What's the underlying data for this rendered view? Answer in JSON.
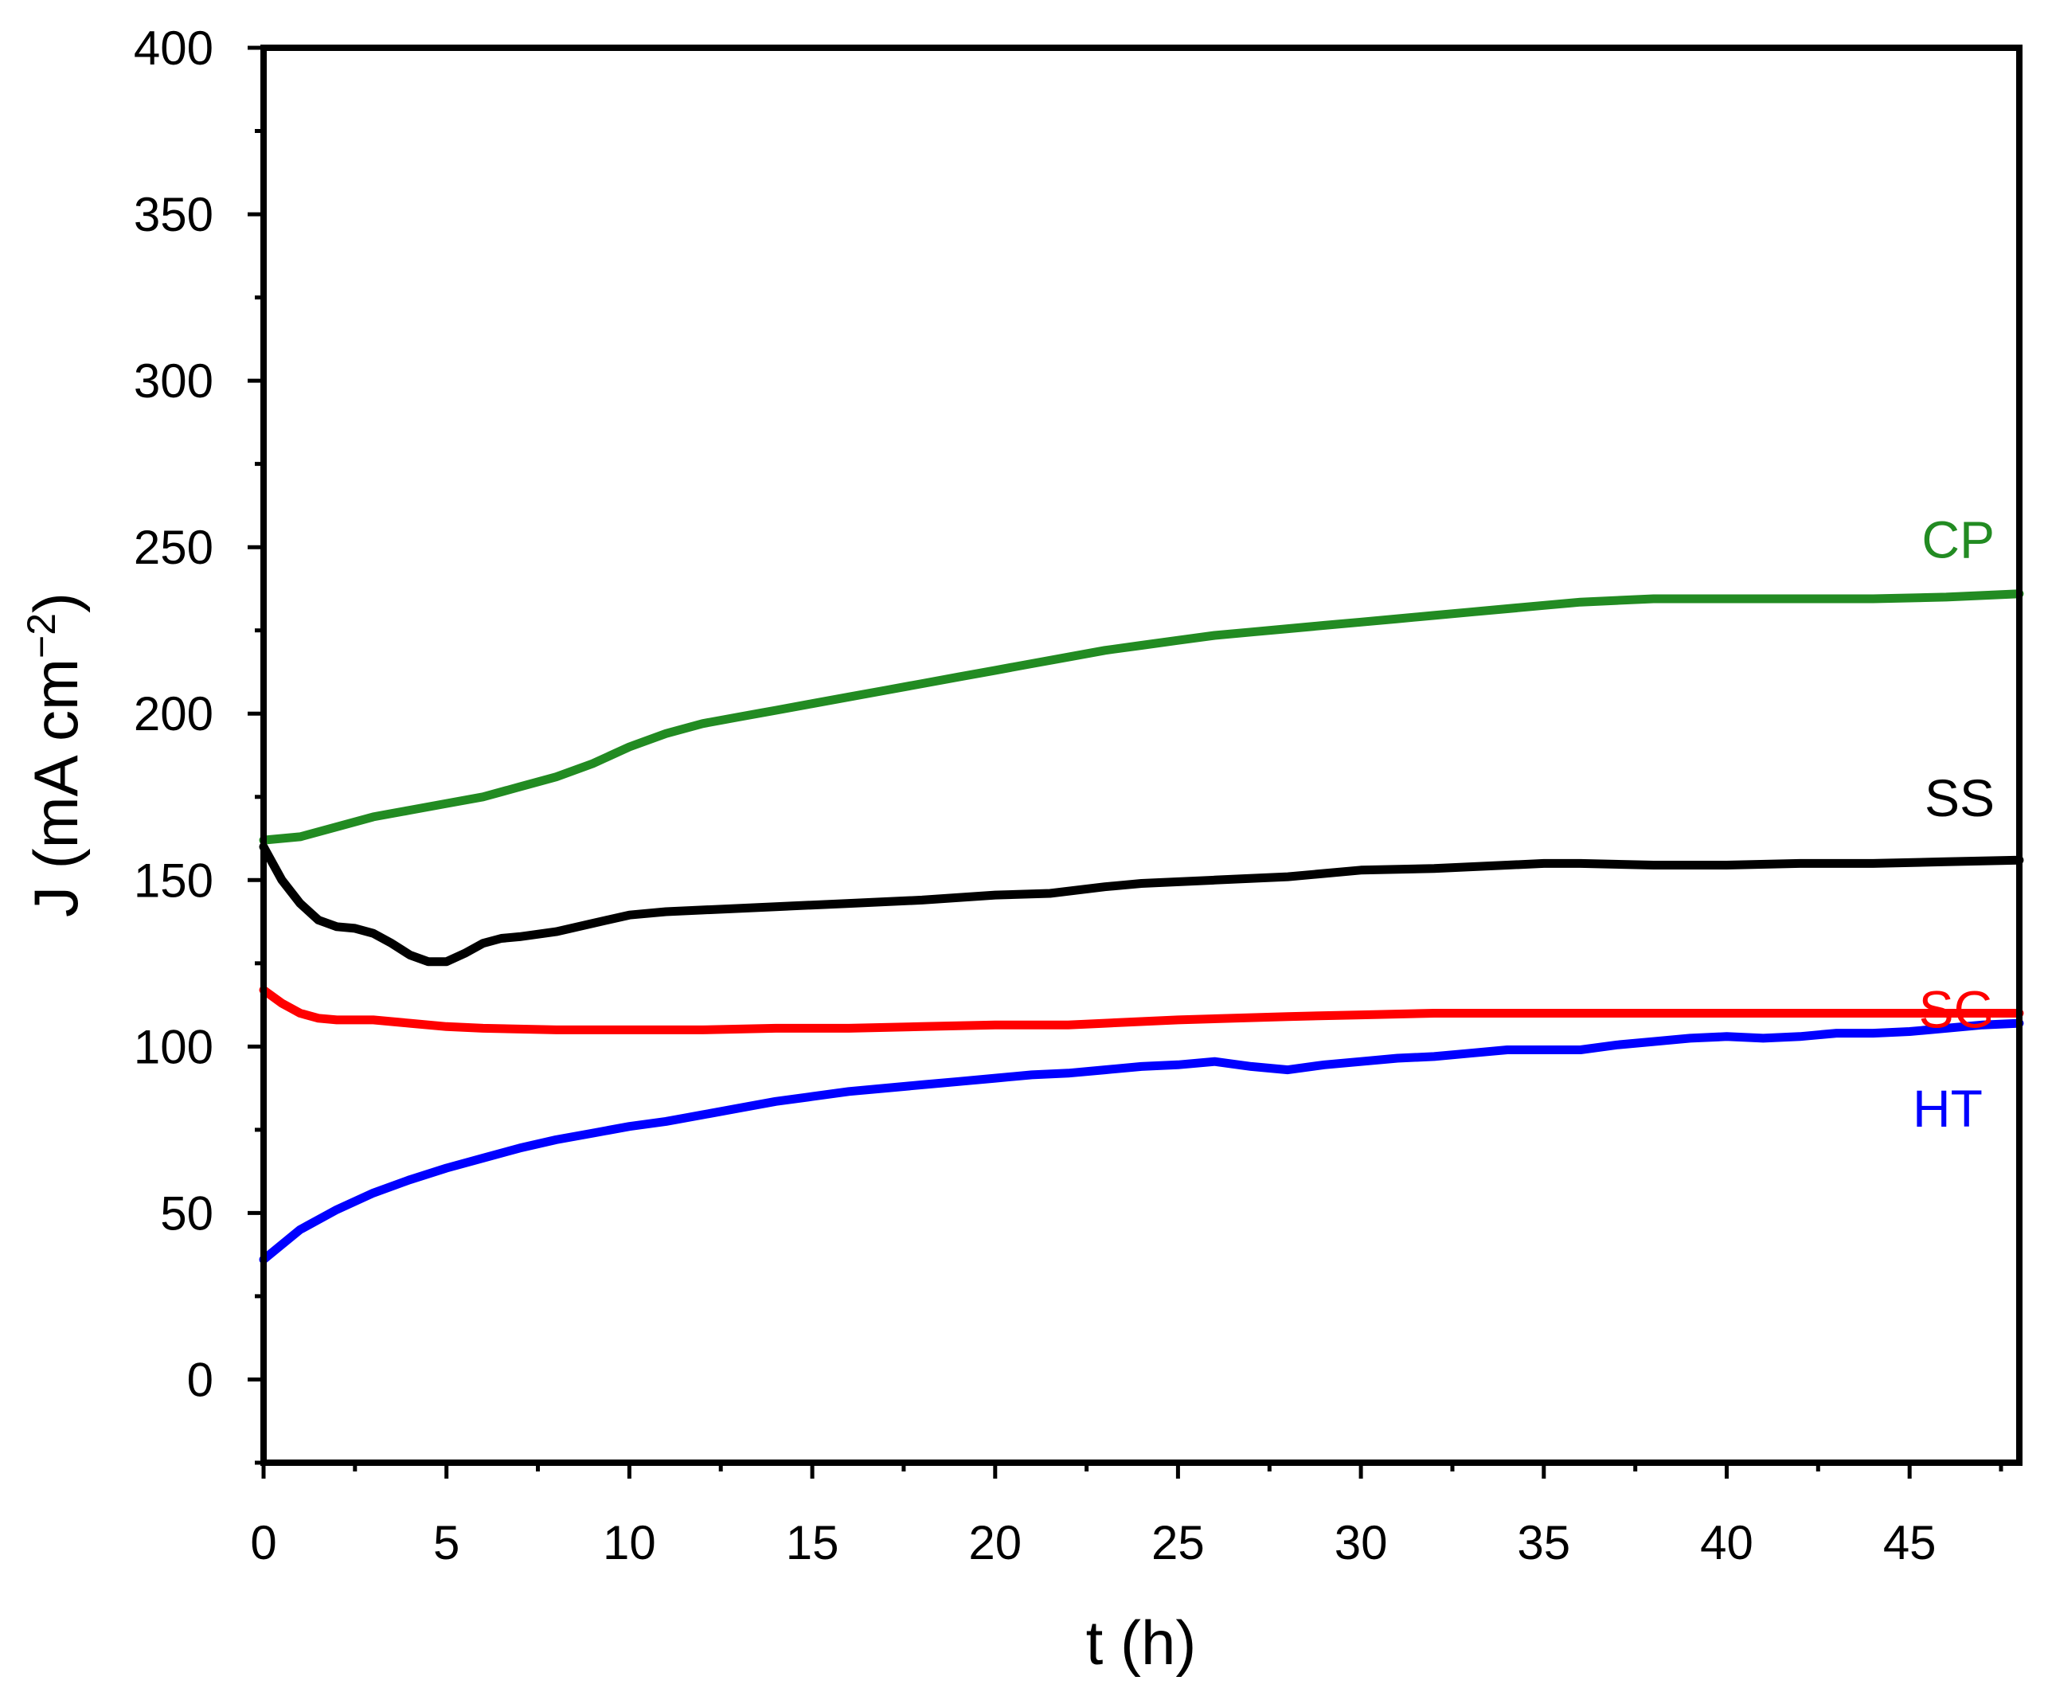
{
  "chart_data": {
    "type": "line",
    "xlabel": "t (h)",
    "ylabel": {
      "main": "J (mA cm",
      "superscript": "−2",
      "close": ")"
    },
    "xlim": [
      0,
      48
    ],
    "ylim": [
      -25,
      400
    ],
    "x_ticks": [
      0,
      5,
      10,
      15,
      20,
      25,
      30,
      35,
      40,
      45
    ],
    "y_ticks": [
      0,
      50,
      100,
      150,
      200,
      250,
      300,
      350,
      400
    ],
    "grid": false,
    "legend": "inline labels at right end of each line",
    "series": [
      {
        "name": "CP",
        "color": "#228b22",
        "points": [
          [
            0,
            162
          ],
          [
            1,
            163
          ],
          [
            2,
            166
          ],
          [
            3,
            169
          ],
          [
            4,
            171
          ],
          [
            5,
            173
          ],
          [
            6,
            175
          ],
          [
            7,
            178
          ],
          [
            8,
            181
          ],
          [
            9,
            185
          ],
          [
            10,
            190
          ],
          [
            11,
            194
          ],
          [
            12,
            197
          ],
          [
            13,
            199
          ],
          [
            14,
            201
          ],
          [
            15,
            203
          ],
          [
            16,
            205
          ],
          [
            17,
            207
          ],
          [
            18,
            209
          ],
          [
            19,
            211
          ],
          [
            20,
            213
          ],
          [
            21,
            215
          ],
          [
            22,
            217
          ],
          [
            23,
            219
          ],
          [
            24,
            220.5
          ],
          [
            25,
            222
          ],
          [
            26,
            223.5
          ],
          [
            27,
            224.5
          ],
          [
            28,
            225.5
          ],
          [
            29,
            226.5
          ],
          [
            30,
            227.5
          ],
          [
            31,
            228.5
          ],
          [
            32,
            229.5
          ],
          [
            33,
            230.5
          ],
          [
            34,
            231.5
          ],
          [
            35,
            232.5
          ],
          [
            36,
            233.5
          ],
          [
            37,
            234
          ],
          [
            38,
            234.5
          ],
          [
            40,
            234.5
          ],
          [
            42,
            234.5
          ],
          [
            44,
            234.5
          ],
          [
            46,
            235
          ],
          [
            48,
            236
          ]
        ]
      },
      {
        "name": "SS",
        "color": "#000000",
        "points": [
          [
            0,
            160
          ],
          [
            0.5,
            150
          ],
          [
            1,
            143
          ],
          [
            1.5,
            138
          ],
          [
            2,
            136
          ],
          [
            2.5,
            135.5
          ],
          [
            3,
            134
          ],
          [
            3.5,
            131
          ],
          [
            4,
            127.5
          ],
          [
            4.5,
            125.5
          ],
          [
            5,
            125.5
          ],
          [
            5.5,
            128
          ],
          [
            6,
            131
          ],
          [
            6.5,
            132.5
          ],
          [
            7,
            133
          ],
          [
            8,
            134.5
          ],
          [
            9,
            137
          ],
          [
            10,
            139.5
          ],
          [
            11,
            140.5
          ],
          [
            12,
            141
          ],
          [
            14,
            142
          ],
          [
            16,
            143
          ],
          [
            18,
            144
          ],
          [
            20,
            145.5
          ],
          [
            21.5,
            146
          ],
          [
            23,
            148
          ],
          [
            24,
            149
          ],
          [
            26,
            150
          ],
          [
            28,
            151
          ],
          [
            30,
            153
          ],
          [
            32,
            153.5
          ],
          [
            34,
            154.5
          ],
          [
            35,
            155
          ],
          [
            36,
            155
          ],
          [
            38,
            154.5
          ],
          [
            40,
            154.5
          ],
          [
            42,
            155
          ],
          [
            44,
            155
          ],
          [
            46,
            155.5
          ],
          [
            48,
            156
          ]
        ]
      },
      {
        "name": "SG",
        "color": "#ff0000",
        "points": [
          [
            0,
            117
          ],
          [
            0.5,
            113
          ],
          [
            1,
            110
          ],
          [
            1.5,
            108.5
          ],
          [
            2,
            108
          ],
          [
            3,
            108
          ],
          [
            4,
            107
          ],
          [
            5,
            106
          ],
          [
            6,
            105.5
          ],
          [
            8,
            105
          ],
          [
            10,
            105
          ],
          [
            12,
            105
          ],
          [
            14,
            105.5
          ],
          [
            16,
            105.5
          ],
          [
            18,
            106
          ],
          [
            20,
            106.5
          ],
          [
            22,
            106.5
          ],
          [
            23,
            107
          ],
          [
            25,
            108
          ],
          [
            28,
            109
          ],
          [
            30,
            109.5
          ],
          [
            32,
            110
          ],
          [
            35,
            110
          ],
          [
            38,
            110
          ],
          [
            40,
            110
          ],
          [
            42,
            110
          ],
          [
            44,
            110
          ],
          [
            46,
            110
          ],
          [
            48,
            110
          ]
        ]
      },
      {
        "name": "HT",
        "color": "#0000ff",
        "points": [
          [
            0,
            36
          ],
          [
            1,
            45
          ],
          [
            2,
            51
          ],
          [
            3,
            56
          ],
          [
            4,
            60
          ],
          [
            5,
            63.5
          ],
          [
            6,
            66.5
          ],
          [
            7,
            69.5
          ],
          [
            8,
            72
          ],
          [
            9,
            74
          ],
          [
            10,
            76
          ],
          [
            11,
            77.5
          ],
          [
            12,
            79.5
          ],
          [
            13,
            81.5
          ],
          [
            14,
            83.5
          ],
          [
            15,
            85
          ],
          [
            16,
            86.5
          ],
          [
            17,
            87.5
          ],
          [
            18,
            88.5
          ],
          [
            19,
            89.5
          ],
          [
            20,
            90.5
          ],
          [
            21,
            91.5
          ],
          [
            22,
            92
          ],
          [
            23,
            93
          ],
          [
            24,
            94
          ],
          [
            25,
            94.5
          ],
          [
            26,
            95.5
          ],
          [
            27,
            94
          ],
          [
            28,
            93
          ],
          [
            29,
            94.5
          ],
          [
            30,
            95.5
          ],
          [
            31,
            96.5
          ],
          [
            32,
            97
          ],
          [
            33,
            98
          ],
          [
            34,
            99
          ],
          [
            35,
            99
          ],
          [
            36,
            99
          ],
          [
            37,
            100.5
          ],
          [
            38,
            101.5
          ],
          [
            39,
            102.5
          ],
          [
            40,
            103
          ],
          [
            41,
            102.5
          ],
          [
            42,
            103
          ],
          [
            43,
            104
          ],
          [
            44,
            104
          ],
          [
            45,
            104.5
          ],
          [
            46,
            105.5
          ],
          [
            47,
            106.5
          ],
          [
            48,
            107
          ]
        ]
      }
    ]
  }
}
